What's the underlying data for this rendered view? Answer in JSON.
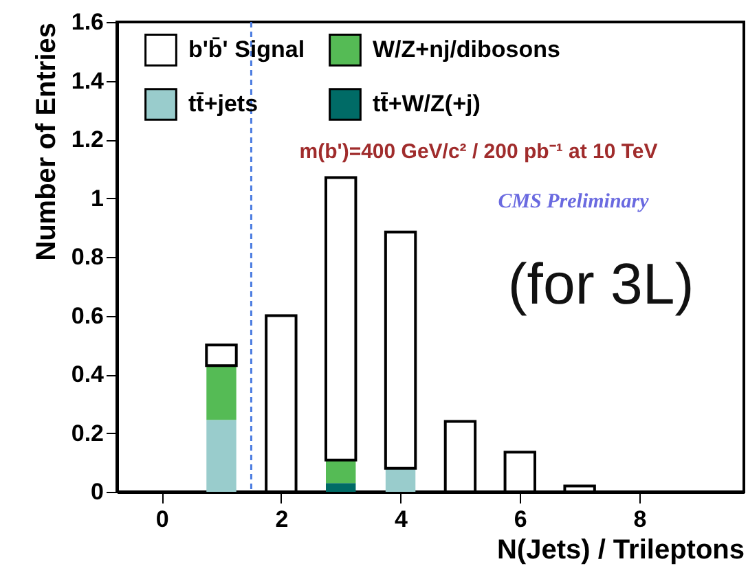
{
  "chart_data": {
    "type": "bar",
    "stacked": true,
    "xlabel": "N(Jets) / Trileptons",
    "ylabel": "Number of Entries",
    "x": [
      1,
      2,
      3,
      4,
      5,
      6,
      7
    ],
    "series": [
      {
        "name": "tt̄+W/Z(+j)",
        "color": "#006b66",
        "values": [
          null,
          null,
          0.03,
          null,
          null,
          null,
          null
        ]
      },
      {
        "name": "tt̄+jets",
        "color": "#99cccc",
        "values": [
          0.245,
          null,
          null,
          0.08,
          null,
          null,
          null
        ]
      },
      {
        "name": "W/Z+nj/dibosons",
        "color": "#55bb55",
        "values": [
          0.185,
          null,
          0.078,
          null,
          null,
          null,
          null
        ]
      },
      {
        "name": "b'b̄' Signal",
        "color": "#ffffff",
        "values": [
          0.07,
          0.6,
          0.962,
          0.805,
          0.24,
          0.135,
          0.02
        ]
      }
    ],
    "xlim": [
      -0.75,
      9.75
    ],
    "xticks": [
      0,
      2,
      4,
      6,
      8
    ],
    "ylim": [
      0,
      1.6
    ],
    "yticks": [
      0,
      0.2,
      0.4,
      0.6,
      0.8,
      1,
      1.2,
      1.4,
      1.6
    ],
    "ref_lines": [
      {
        "axis": "x",
        "value": 1.5,
        "color": "#4a7be0",
        "line_style": "dashed"
      }
    ],
    "annotations": [
      "m(b')=400 GeV/c² / 200 pb⁻¹ at 10 TeV",
      "CMS Preliminary",
      "(for 3L)"
    ],
    "legend": "top",
    "grid": false
  }
}
